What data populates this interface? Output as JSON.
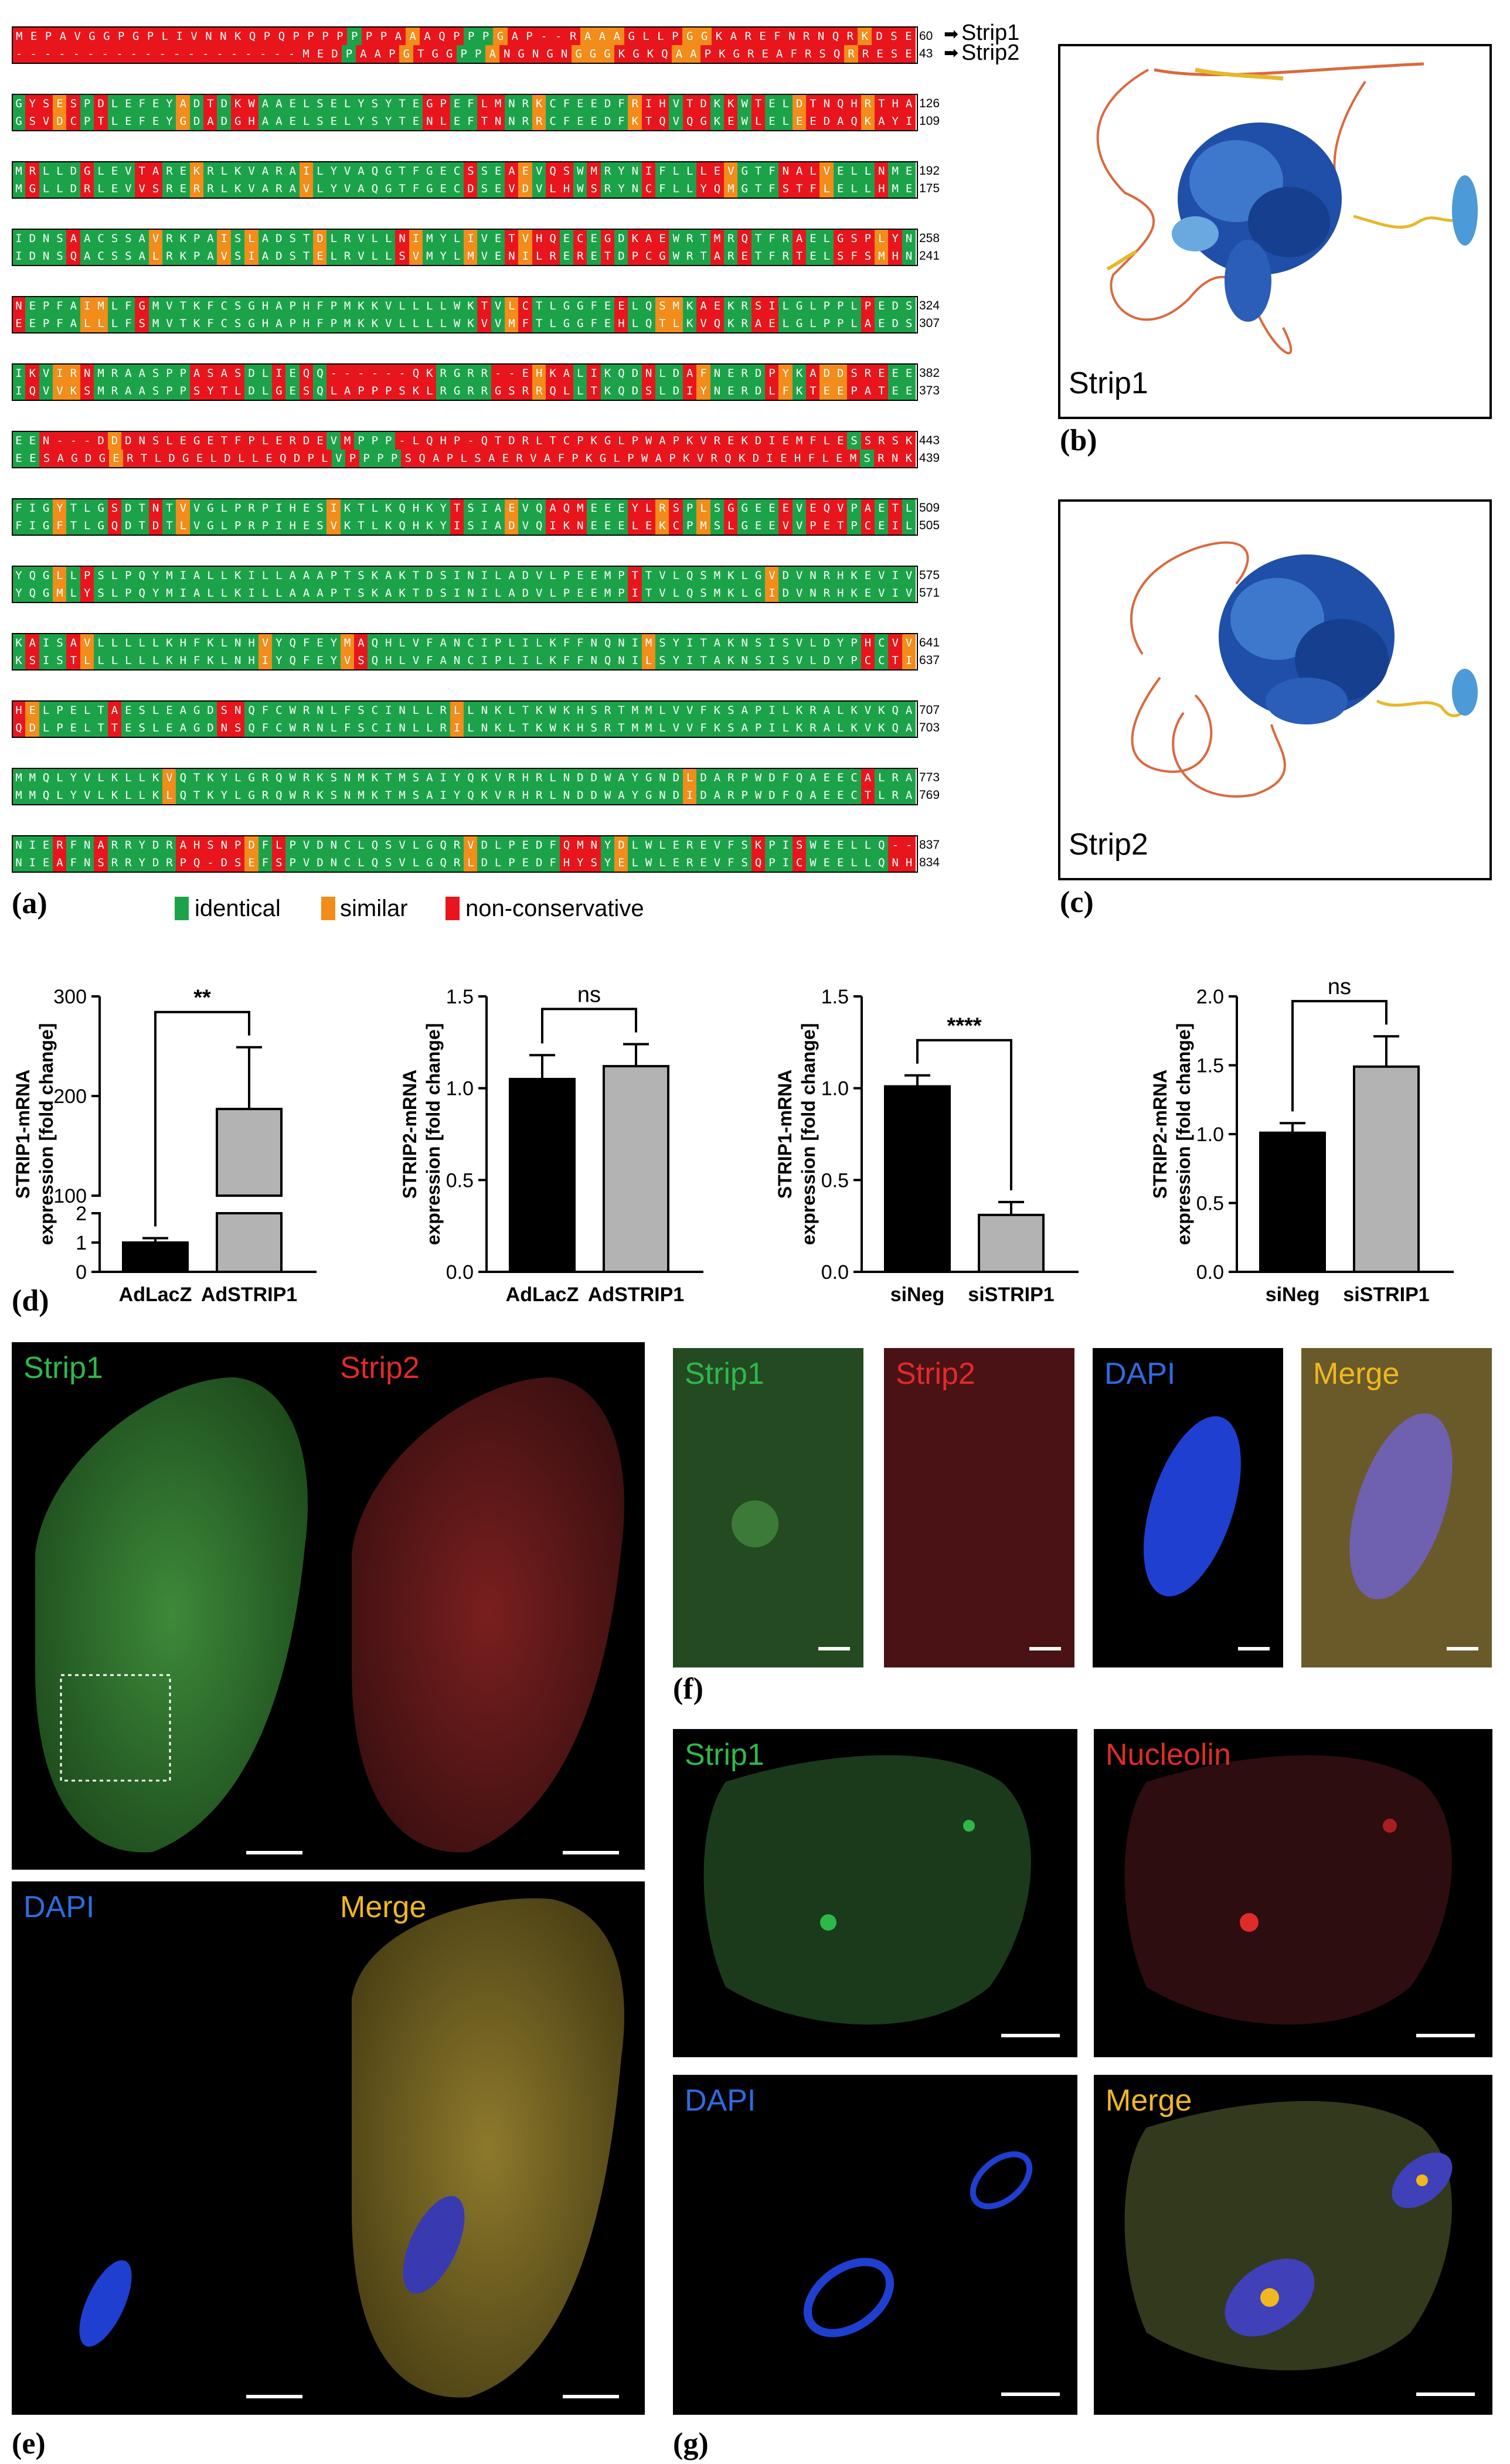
{
  "alignment": {
    "strip_labels": [
      "Strip1",
      "Strip2"
    ],
    "rows": [
      {
        "end": [
          "60",
          "43"
        ],
        "s1": "MEPAVGGPGPLIVNNKQPQPPPPPPPAAAQPPPGAP--RAAAGLLPGGKAREFNRNQRKDSE",
        "s2": "--------------------MEDPAAPGTGGPPANGNGNGGGKGKQAAPKGREAFRSQRRESE"
      },
      {
        "end": [
          "126",
          "109"
        ],
        "s1": "GYSESPDLEFEYADTDKWAAELSELYSYTEGPEFLMNRKCFEEDFRIHVTDKKWTELDTNQHRTHA",
        "s2": "GSVDCPTLEFEYGDADGHAAELSELYSYTENLEFTNNRRCFEEDFKTQVQGKEWLELEEDAQKAYI"
      },
      {
        "end": [
          "192",
          "175"
        ],
        "s1": "MRLLDGLEVTAREKRLKVARAILYVAQGTFGECSSEAEVQSWMRYNIFLLLEVGTFNALVELLNME",
        "s2": "MGLLDRLEVVSRERRLKVARAVLYVAQGTFGECDSEVDVLHWSRYNCFLLYQMGTFSTFLELLHME"
      },
      {
        "end": [
          "258",
          "241"
        ],
        "s1": "IDNSAACSSAVRKPAISLADSTDLRVLLNIMYLIVETVHQECEGDKAEWRTMRQTFRAELGSPLYN",
        "s2": "IDNSQACSSALRKPAVSIADSTELRVLLSVMYLMVENILRERETDPCGWRTARETFRTELSFSMHN"
      },
      {
        "end": [
          "324",
          "307"
        ],
        "s1": "NEPFAIMLFGMVTKFCSGHAPHFPMKKVLLLLWKTVLCTLGGFEELQSMKAEKRSILGLPPLPEDS",
        "s2": "EEPFALLLFSMVTKFCSGHAPHFPMKKVLLLLWKVVMFTLGGFEHLQTLKVQKRAELGLPPLAEDS"
      },
      {
        "end": [
          "382",
          "373"
        ],
        "s1": "IKVIRNMRAASPPASASDLIEQQ------QKRGRR--EHKALIKQDNLDAFNERDPYKADDSREEE",
        "s2": "IQVVKSMRAASPPSYTLDLGESQLAPPPSKLRGRRGSRRQLLTKQDSLDIYNERDLFKTEEPATEE"
      },
      {
        "end": [
          "443",
          "439"
        ],
        "s1": "EEN---DDDNSLEGETFPLERDEVMPPP-LQHP-QTDRLTCPKGLPWAPKVREKDIEMFLESSRSK",
        "s2": "EESAGDGERTLDGELDLLEQDPLVPPPPSQAPLSAERVAFPKGLPWAPKVRQKDIEHFLEMSRNK"
      },
      {
        "end": [
          "509",
          "505"
        ],
        "s1": "FIGYTLGSDTNTVVGLPRPIHESIKTLKQHKYTSIAEVQAQMEEEYLRSPLSGGEEEVEQVPAETL",
        "s2": "FIGFTLGQDTDTLVGLPRPIHESVKTLKQHKYISIADVQIKNEEELEKCPMSLGEEVVPETPCEIL"
      },
      {
        "end": [
          "575",
          "571"
        ],
        "s1": "YQGLLPSLPQYMIALLKILLAAAPTSKAKTDSINILADVLPEEMPTTVLQSMKLGVDVNRHKEVIV",
        "s2": "YQGMLYSLPQYMIALLKILLAAAPTSKAKTDSINILADVLPEEMPITVLQSMKLGIDVNRHKEVIV"
      },
      {
        "end": [
          "641",
          "637"
        ],
        "s1": "KAISAVLLLLLKHFKLNHVYQFEYMAQHLVFANCIPLILKFFNQNIMSYITAKNSISVLDYPHCVV",
        "s2": "KSISTLLLLLLKHFKLNHIYQFEYVSQHLVFANCIPLILKFFNQNILSYITAKNSISVLDYPCCTI"
      },
      {
        "end": [
          "707",
          "703"
        ],
        "s1": "HELPELTAESLEAGDSNQFCWRNLFSCINLLRLLNKLTKWKHSRTMMLVVFKSAPILKRALKVKQA",
        "s2": "QDLPELTTESLEAGDNSQFCWRNLFSCINLLRILNKLTKWKHSRTMMLVVFKSAPILKRALKVKQA"
      },
      {
        "end": [
          "773",
          "769"
        ],
        "s1": "MMQLYVLKLLKVQTKYLGRQWRKSNMKTMSAIYQKVRHRLNDDWAYGNDLDARPWDFQAEECALRA",
        "s2": "MMQLYVLKLLKLQTKYLGRQWRKSNMKTMSAIYQKVRHRLNDDWAYGNDIDARPWDFQAEECTLRA"
      },
      {
        "end": [
          "837",
          "834"
        ],
        "s1": "NIERFNARRYDRAHSNPDFLPVDNCLQSVLGQRVDLPEDFQMNYDLWLEREVFSKPISWEELLQ--",
        "s2": "NIEAFNSRRYDRPQ-DSEFSPVDNCLQSVLGQRLDLPEDFHYSYELWLEREVFSQPICWEELLQNH"
      }
    ],
    "legend": {
      "identical": "identical",
      "similar": "similar",
      "non_conservative": "non-conservative"
    }
  },
  "colors": {
    "identical": "#1ca34a",
    "similar": "#f28c1a",
    "non_conservative": "#e8161c",
    "bar_control": "#000000",
    "bar_treatment": "#b3b3b3"
  },
  "panels": {
    "a": "(a)",
    "b": "(b)",
    "c": "(c)",
    "d": "(d)",
    "e": "(e)",
    "f": "(f)",
    "g": "(g)"
  },
  "structures": {
    "b": "Strip1",
    "c": "Strip2"
  },
  "chart_data": [
    {
      "type": "bar",
      "categories": [
        "AdLacZ",
        "AdSTRIP1"
      ],
      "values": [
        1.0,
        187
      ],
      "errors": [
        0.15,
        62
      ],
      "ylabel": "STRIP1-mRNA expression [fold change]",
      "ylim": [
        0,
        300
      ],
      "axis_break": [
        2,
        100
      ],
      "yticks_low": [
        "0",
        "1",
        "2"
      ],
      "yticks_high": [
        "100",
        "200",
        "300"
      ],
      "significance": "**"
    },
    {
      "type": "bar",
      "categories": [
        "AdLacZ",
        "AdSTRIP1"
      ],
      "values": [
        1.05,
        1.12
      ],
      "errors": [
        0.13,
        0.12
      ],
      "ylabel": "STRIP2-mRNA expression [fold change]",
      "ylim": [
        0,
        1.5
      ],
      "yticks": [
        "0.0",
        "0.5",
        "1.0",
        "1.5"
      ],
      "significance": "ns"
    },
    {
      "type": "bar",
      "categories": [
        "siNeg",
        "siSTRIP1"
      ],
      "values": [
        1.01,
        0.31
      ],
      "errors": [
        0.06,
        0.07
      ],
      "ylabel": "STRIP1-mRNA expression [fold change]",
      "ylim": [
        0,
        1.5
      ],
      "yticks": [
        "0.0",
        "0.5",
        "1.0",
        "1.5"
      ],
      "significance": "****"
    },
    {
      "type": "bar",
      "categories": [
        "siNeg",
        "siSTRIP1"
      ],
      "values": [
        1.01,
        1.49
      ],
      "errors": [
        0.07,
        0.22
      ],
      "ylabel": "STRIP2-mRNA expression [fold change]",
      "ylim": [
        0,
        2.0
      ],
      "yticks": [
        "0.0",
        "0.5",
        "1.0",
        "1.5",
        "2.0"
      ],
      "significance": "ns"
    }
  ],
  "micrographs": {
    "e": [
      "Strip1",
      "Strip2",
      "DAPI",
      "Merge"
    ],
    "f": [
      "Strip1",
      "Strip2",
      "DAPI",
      "Merge"
    ],
    "g": [
      "Strip1",
      "Nucleolin",
      "DAPI",
      "Merge"
    ]
  }
}
